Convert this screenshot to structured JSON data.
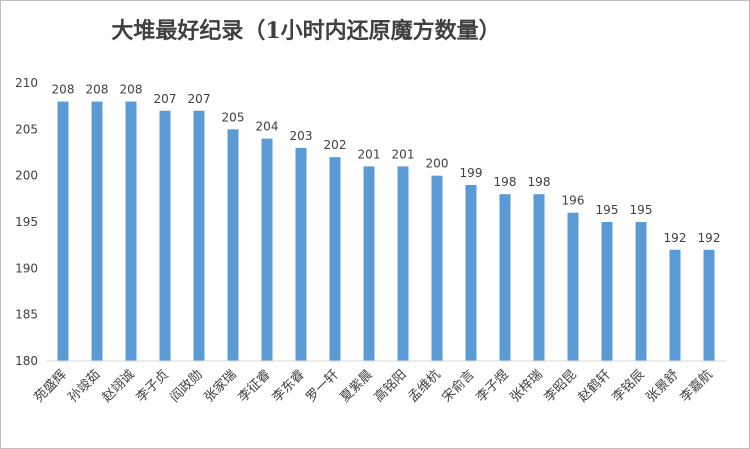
{
  "chart_data": {
    "type": "bar",
    "title": "大堆最好纪录（1小时内还原魔方数量）",
    "categories": [
      "苑盛辉",
      "孙竣茹",
      "赵翊诚",
      "李子贞",
      "阎政勋",
      "张家瑞",
      "李征睿",
      "李东睿",
      "罗一轩",
      "夏紫晨",
      "高铭阳",
      "孟维杭",
      "宋俞言",
      "李子煜",
      "张梓瑞",
      "李昭昆",
      "赵鹤轩",
      "李铭辰",
      "张景舒",
      "李嘉航"
    ],
    "values": [
      208,
      208,
      208,
      207,
      207,
      205,
      204,
      203,
      202,
      201,
      201,
      200,
      199,
      198,
      198,
      196,
      195,
      195,
      192,
      192
    ],
    "ylim": [
      180,
      210
    ],
    "yticks": [
      180,
      185,
      190,
      195,
      200,
      205,
      210
    ],
    "grid": false,
    "legend": "none",
    "colors": {
      "bar": "#5b9bd5",
      "axis": "#d9d9d9",
      "text": "#404040"
    }
  }
}
